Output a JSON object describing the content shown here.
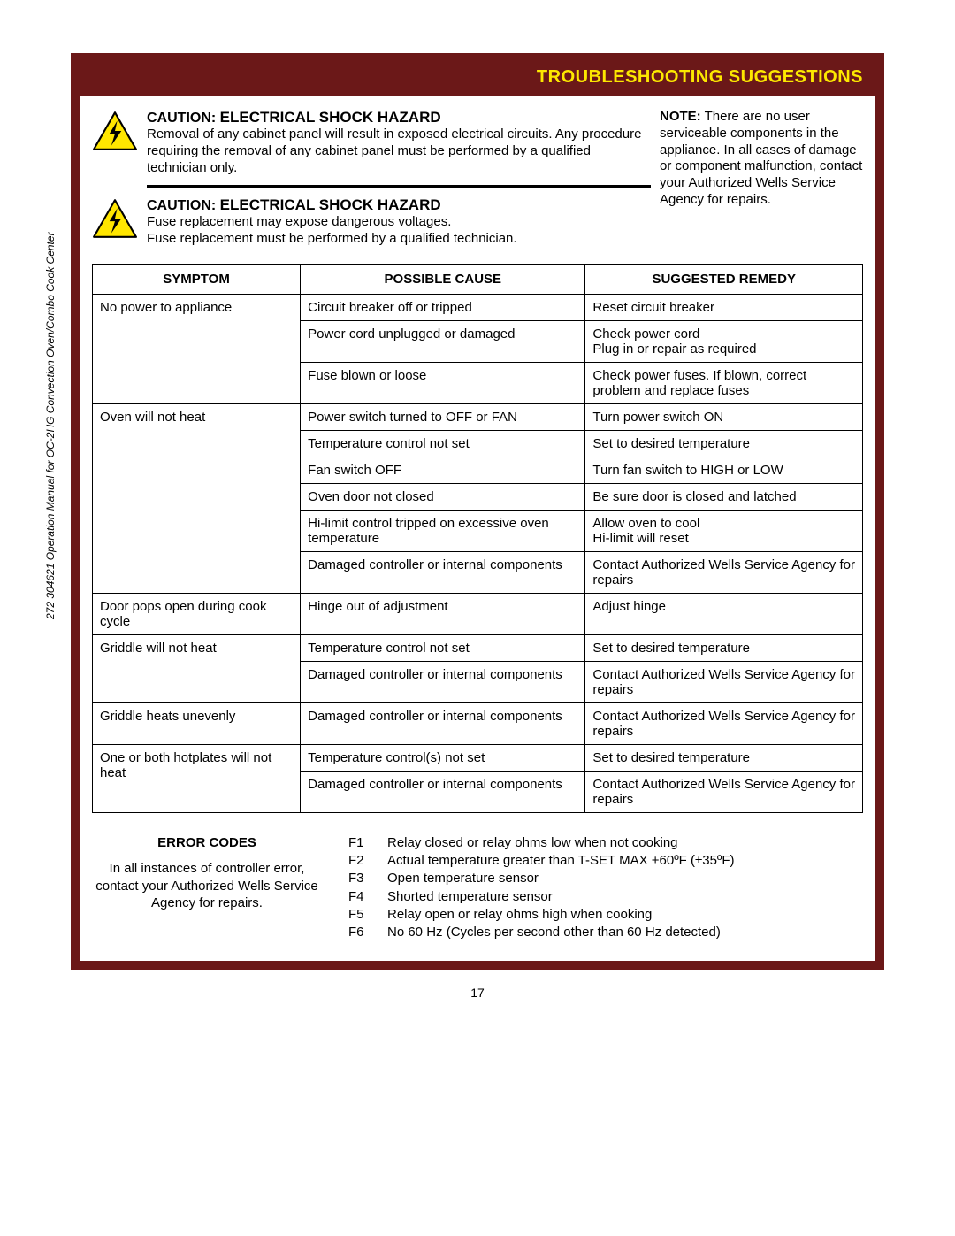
{
  "colors": {
    "frame": "#6b1818",
    "title_text": "#fce800",
    "warning_triangle_fill": "#ffe600",
    "warning_triangle_stroke": "#000000",
    "bolt": "#000000",
    "table_border": "#000000",
    "text": "#000000",
    "background": "#ffffff"
  },
  "side_text": "272   304621   Operation Manual for OC-2HG Convection Oven/Combo Cook Center",
  "title": "TROUBLESHOOTING SUGGESTIONS",
  "cautions": [
    {
      "heading_prefix": "CAUTION:",
      "heading_rest": "ELECTRICAL SHOCK HAZARD",
      "body": "Removal of any cabinet panel will result in exposed electrical circuits.  Any procedure requiring the removal of any cabinet panel must be performed  by a qualified technician only."
    },
    {
      "heading_prefix": "CAUTION:",
      "heading_rest": "ELECTRICAL SHOCK HAZARD",
      "body": "Fuse replacement may expose dangerous voltages.\nFuse replacement must be performed by a qualified technician."
    }
  ],
  "note_label": "NOTE:",
  "note_body": "There are no user serviceable components in the appliance.  In all cases of damage or component malfunction,  contact your Authorized Wells Service Agency for repairs.",
  "table": {
    "headers": [
      "SYMPTOM",
      "POSSIBLE CAUSE",
      "SUGGESTED REMEDY"
    ],
    "rows": [
      {
        "symptom": "No power to appliance",
        "cause": "Circuit breaker off or tripped",
        "remedy": "Reset circuit breaker"
      },
      {
        "symptom": "",
        "cause": "Power cord unplugged or damaged",
        "remedy": "Check power cord\nPlug in or repair as required"
      },
      {
        "symptom": "",
        "cause": "Fuse blown or loose",
        "remedy": "Check power fuses.  If blown, correct problem and replace fuses"
      },
      {
        "symptom": "Oven will not heat",
        "cause": "Power switch turned to OFF or FAN",
        "remedy": "Turn power switch ON"
      },
      {
        "symptom": "",
        "cause": "Temperature control not set",
        "remedy": "Set to desired temperature"
      },
      {
        "symptom": "",
        "cause": "Fan switch OFF",
        "remedy": "Turn fan switch to HIGH or LOW"
      },
      {
        "symptom": "",
        "cause": "Oven door not closed",
        "remedy": "Be sure door is closed and latched"
      },
      {
        "symptom": "",
        "cause": "Hi-limit control tripped on excessive oven temperature",
        "remedy": "Allow oven to cool\nHi-limit will reset"
      },
      {
        "symptom": "",
        "cause": "Damaged controller or internal components",
        "remedy": "Contact Authorized Wells Service Agency for repairs"
      },
      {
        "symptom": "Door pops open during cook cycle",
        "cause": "Hinge out of adjustment",
        "remedy": "Adjust hinge"
      },
      {
        "symptom": "Griddle will not heat",
        "cause": "Temperature control not set",
        "remedy": "Set to desired temperature"
      },
      {
        "symptom": "",
        "cause": "Damaged controller or internal components",
        "remedy": "Contact Authorized Wells Service Agency for repairs"
      },
      {
        "symptom": "Griddle heats unevenly",
        "cause": "Damaged controller or internal components",
        "remedy": "Contact Authorized Wells Service Agency for repairs"
      },
      {
        "symptom": "One or both hotplates will not heat",
        "cause": "Temperature control(s) not set",
        "remedy": "Set to desired temperature"
      },
      {
        "symptom": "",
        "cause": "Damaged controller or internal components",
        "remedy": "Contact Authorized Wells Service Agency for repairs"
      }
    ],
    "span_groups": [
      3,
      6,
      1,
      2,
      1,
      2
    ]
  },
  "error_section": {
    "title": "ERROR CODES",
    "left_body": "In all instances of controller error, contact your Authorized Wells Service Agency for repairs.",
    "codes": [
      {
        "code": "F1",
        "desc": "Relay closed or relay ohms low when not cooking"
      },
      {
        "code": "F2",
        "desc": "Actual temperature greater than T-SET MAX +60ºF (±35ºF)"
      },
      {
        "code": "F3",
        "desc": "Open temperature sensor"
      },
      {
        "code": "F4",
        "desc": "Shorted temperature sensor"
      },
      {
        "code": "F5",
        "desc": "Relay open or relay ohms high when cooking"
      },
      {
        "code": "F6",
        "desc": "No 60 Hz (Cycles per second other than 60 Hz detected)"
      }
    ]
  },
  "page_number": "17"
}
